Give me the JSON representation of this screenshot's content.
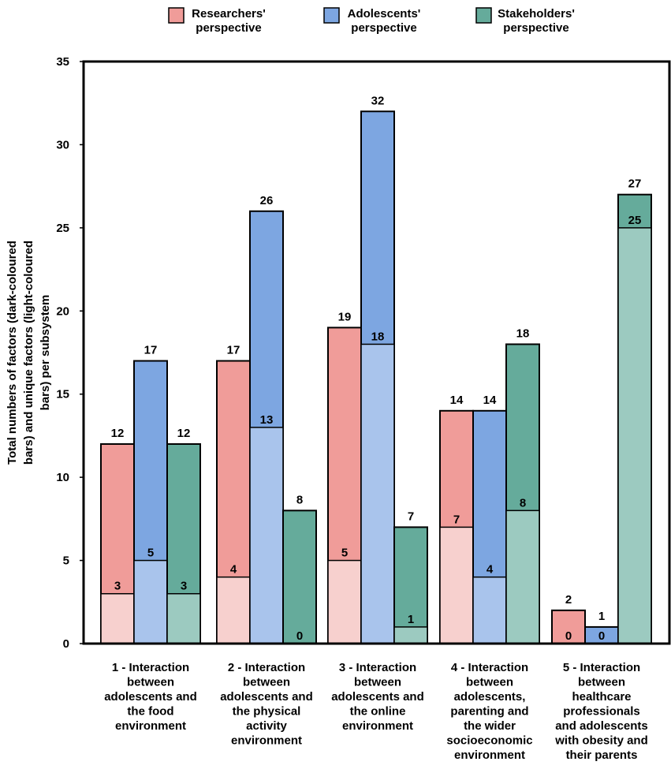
{
  "chart_data": {
    "type": "bar",
    "ylabel_lines": [
      "Total numbers of factors (dark-coloured",
      "bars) and unique factors (light-coloured",
      "bars) per subsystem"
    ],
    "ylim": [
      0,
      35
    ],
    "yticks": [
      "0",
      "5",
      "10",
      "15",
      "20",
      "25",
      "30",
      "35"
    ],
    "categories": [
      [
        "1 - Interaction",
        "between",
        "adolescents and",
        "the food",
        "environment"
      ],
      [
        "2 - Interaction",
        "between",
        "adolescents and",
        "the physical",
        "activity",
        "environment"
      ],
      [
        "3 - Interaction",
        "between",
        "adolescents and",
        "the online",
        "environment"
      ],
      [
        "4 - Interaction",
        "between",
        "adolescents,",
        "parenting and",
        "the wider",
        "socioeconomic",
        "environment"
      ],
      [
        "5 - Interaction",
        "between",
        "healthcare",
        "professionals",
        "and adolescents",
        "with obesity and",
        "their parents"
      ]
    ],
    "series": [
      {
        "name": [
          "Researchers'",
          "perspective"
        ],
        "dark_color": "#f09c99",
        "light_color": "#f7d0ce",
        "total": [
          12,
          17,
          19,
          14,
          2
        ],
        "unique": [
          3,
          4,
          5,
          7,
          0
        ]
      },
      {
        "name": [
          "Adolescents'",
          "perspective"
        ],
        "dark_color": "#7da6e1",
        "light_color": "#a9c4ec",
        "total": [
          17,
          26,
          32,
          14,
          1
        ],
        "unique": [
          5,
          13,
          18,
          4,
          0
        ]
      },
      {
        "name": [
          "Stakeholders'",
          "perspective"
        ],
        "dark_color": "#65ab9b",
        "light_color": "#9ccac0",
        "total": [
          12,
          8,
          7,
          18,
          27
        ],
        "unique": [
          3,
          0,
          1,
          8,
          25
        ]
      }
    ]
  }
}
